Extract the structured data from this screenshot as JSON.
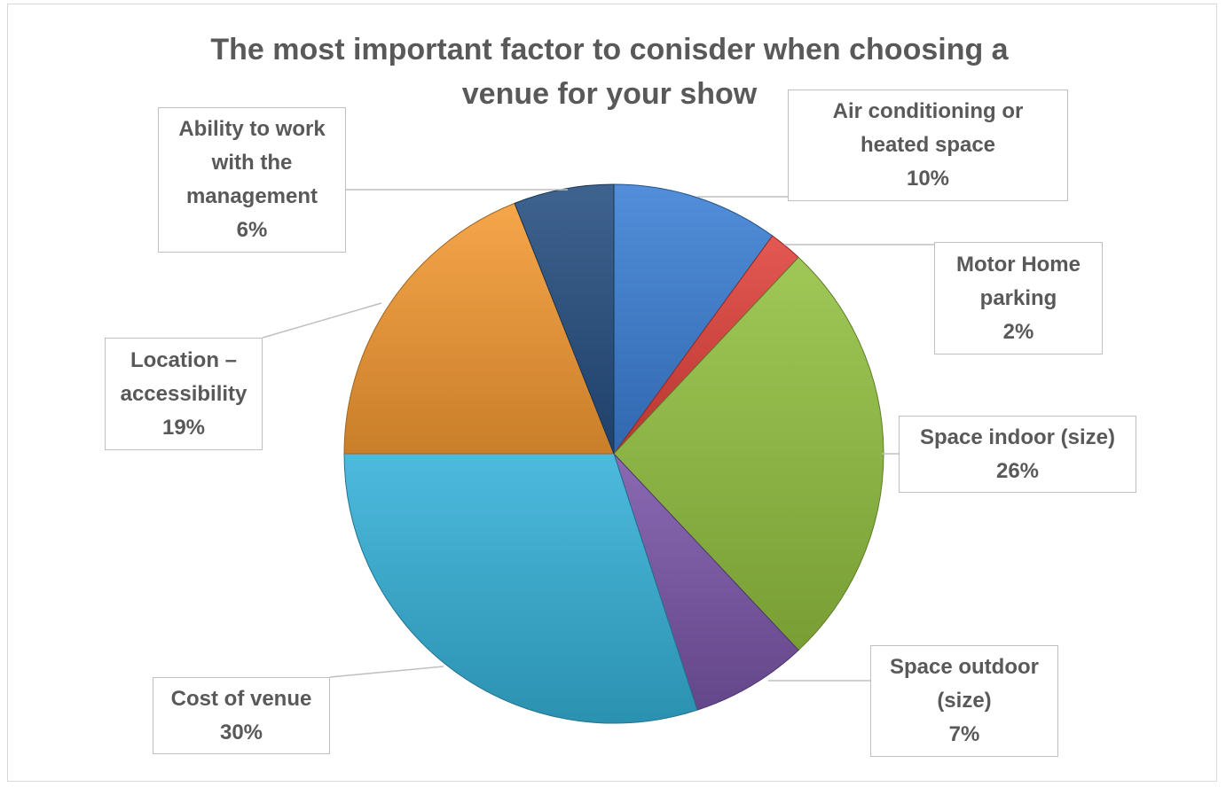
{
  "chart_data": {
    "type": "pie",
    "title_lines": [
      "The most important factor to conisder when choosing a",
      "venue for your show"
    ],
    "start_angle_deg": 0,
    "direction": "clockwise",
    "slices": [
      {
        "name": "Air conditioning or heated space",
        "value": 10,
        "label_lines": [
          "Air conditioning or",
          "heated space"
        ],
        "pct_label": "10%",
        "color": "#3a7fd5"
      },
      {
        "name": "Motor Home parking",
        "value": 2,
        "label_lines": [
          "Motor Home",
          "parking"
        ],
        "pct_label": "2%",
        "color": "#e0413a"
      },
      {
        "name": "Space indoor (size)",
        "value": 26,
        "label_lines": [
          "Space indoor (size)"
        ],
        "pct_label": "26%",
        "color": "#92c140"
      },
      {
        "name": "Space outdoor (size)",
        "value": 7,
        "label_lines": [
          "Space outdoor",
          "(size)"
        ],
        "pct_label": "7%",
        "color": "#7a55a8"
      },
      {
        "name": "Cost of venue",
        "value": 30,
        "label_lines": [
          "Cost of venue"
        ],
        "pct_label": "30%",
        "color": "#35b1d8"
      },
      {
        "name": "Location – accessibility",
        "value": 19,
        "label_lines": [
          "Location –",
          "accessibility"
        ],
        "pct_label": "19%",
        "color": "#f59a32"
      },
      {
        "name": "Ability to work with the management",
        "value": 6,
        "label_lines": [
          "Ability to work",
          "with the",
          "management"
        ],
        "pct_label": "6%",
        "color": "#254e80"
      }
    ]
  }
}
